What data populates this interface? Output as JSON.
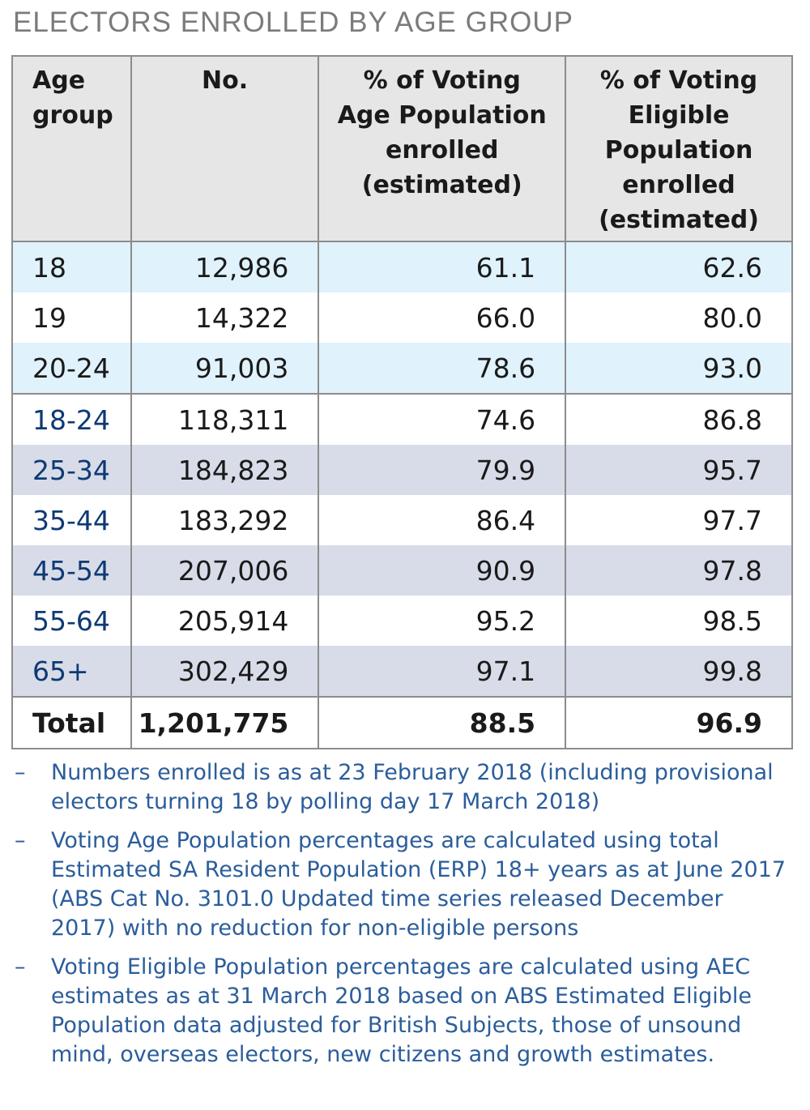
{
  "title": "ELECTORS ENROLLED BY AGE GROUP",
  "headers": [
    "Age group",
    "No.",
    "% of Voting Age Population enrolled (estimated)",
    "% of Voting Eligible Population enrolled (estimated)"
  ],
  "rows": [
    {
      "age": "18",
      "no": "12,986",
      "vap": "61.1",
      "vep": "62.6"
    },
    {
      "age": "19",
      "no": "14,322",
      "vap": "66.0",
      "vep": "80.0"
    },
    {
      "age": "20-24",
      "no": "91,003",
      "vap": "78.6",
      "vep": "93.0"
    },
    {
      "age": "18-24",
      "no": "118,311",
      "vap": "74.6",
      "vep": "86.8"
    },
    {
      "age": "25-34",
      "no": "184,823",
      "vap": "79.9",
      "vep": "95.7"
    },
    {
      "age": "35-44",
      "no": "183,292",
      "vap": "86.4",
      "vep": "97.7"
    },
    {
      "age": "45-54",
      "no": "207,006",
      "vap": "90.9",
      "vep": "97.8"
    },
    {
      "age": "55-64",
      "no": "205,914",
      "vap": "95.2",
      "vep": "98.5"
    },
    {
      "age": "65+",
      "no": "302,429",
      "vap": "97.1",
      "vep": "99.8"
    }
  ],
  "total": {
    "age": "Total",
    "no": "1,201,775",
    "vap": "88.5",
    "vep": "96.9"
  },
  "notes": [
    "Numbers enrolled is as at 23 February 2018 (including provisional electors turning 18 by polling day 17 March 2018)",
    "Voting Age Population percentages are calculated using total Estimated SA Resident Population (ERP) 18+ years as at June 2017 (ABS Cat No. 3101.0 Updated time series released December 2017) with no reduction for non-eligible persons",
    "Voting Eligible Population percentages are calculated using AEC estimates as at 31 March 2018 based on ABS Estimated Eligible Population data adjusted for British Subjects, those of unsound mind, overseas electors, new citizens and growth estimates."
  ],
  "note_bullet": "–",
  "colors": {
    "row_light_blue": "#e0f2fc",
    "row_lavender": "#d8dce8",
    "header": "#e6e6e6",
    "age_blue": "#0e3a74",
    "notes": "#2b5d9b"
  }
}
